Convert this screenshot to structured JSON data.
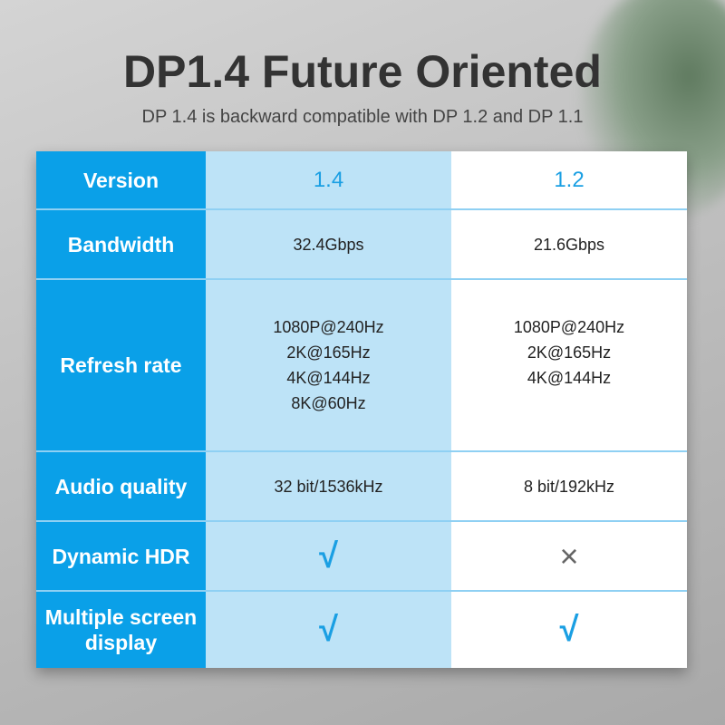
{
  "header": {
    "title": "DP1.4 Future Oriented",
    "subtitle": "DP 1.4 is backward compatible with DP 1.2 and DP 1.1"
  },
  "colors": {
    "label_column": "#0aa0e8",
    "dp14_column": "#bde3f7",
    "dp12_column": "#ffffff",
    "accent": "#1a9fe3"
  },
  "table": {
    "rows": [
      {
        "label": "Version",
        "dp14": "1.4",
        "dp12": "1.2"
      },
      {
        "label": "Bandwidth",
        "dp14": "32.4Gbps",
        "dp12": "21.6Gbps"
      },
      {
        "label": "Refresh rate",
        "dp14": [
          "1080P@240Hz",
          "2K@165Hz",
          "4K@144Hz",
          "8K@60Hz"
        ],
        "dp12": [
          "1080P@240Hz",
          "2K@165Hz",
          "4K@144Hz"
        ]
      },
      {
        "label": "Audio quality",
        "dp14": "32 bit/1536kHz",
        "dp12": "8 bit/192kHz"
      },
      {
        "label": "Dynamic HDR",
        "dp14": "√",
        "dp12": "×",
        "dp14_icon": "check-icon",
        "dp12_icon": "cross-icon"
      },
      {
        "label": "Multiple screen display",
        "dp14": "√",
        "dp12": "√",
        "dp14_icon": "check-icon",
        "dp12_icon": "check-icon"
      }
    ]
  }
}
